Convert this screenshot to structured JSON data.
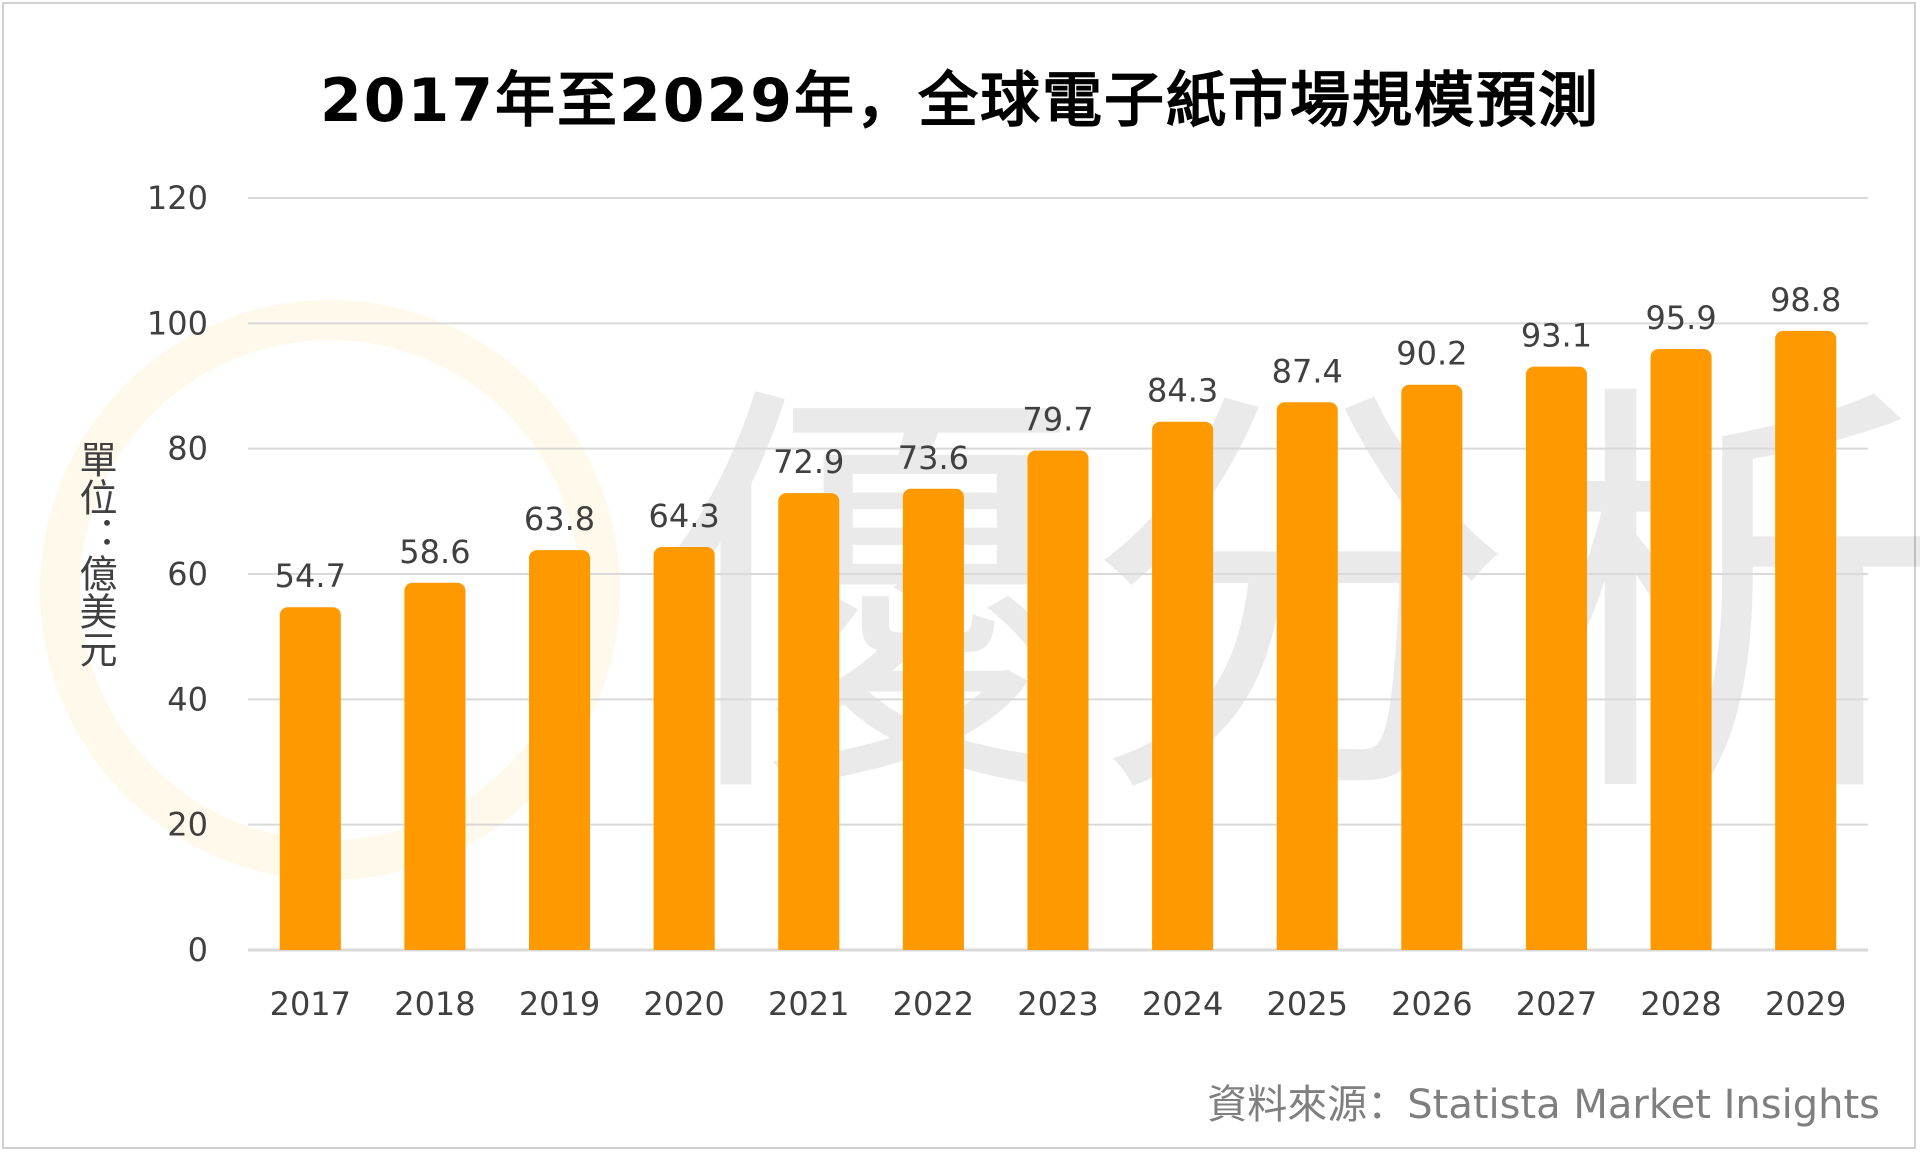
{
  "chart_data": {
    "type": "bar",
    "title": "2017年至2029年，全球電子紙市場規模預測",
    "ylabel": "單位：億美元",
    "xlabel": "",
    "ylim": [
      0,
      120
    ],
    "yticks": [
      0,
      20,
      40,
      60,
      80,
      100,
      120
    ],
    "grid": true,
    "categories": [
      "2017",
      "2018",
      "2019",
      "2020",
      "2021",
      "2022",
      "2023",
      "2024",
      "2025",
      "2026",
      "2027",
      "2028",
      "2029"
    ],
    "values": [
      54.7,
      58.6,
      63.8,
      64.3,
      72.9,
      73.6,
      79.7,
      84.3,
      87.4,
      90.2,
      93.1,
      95.9,
      98.8
    ],
    "bar_color": "#ff9900",
    "gridline_color": "#d9d9d9"
  },
  "source": "資料來源：Statista Market Insights",
  "watermark_text": "優分析"
}
